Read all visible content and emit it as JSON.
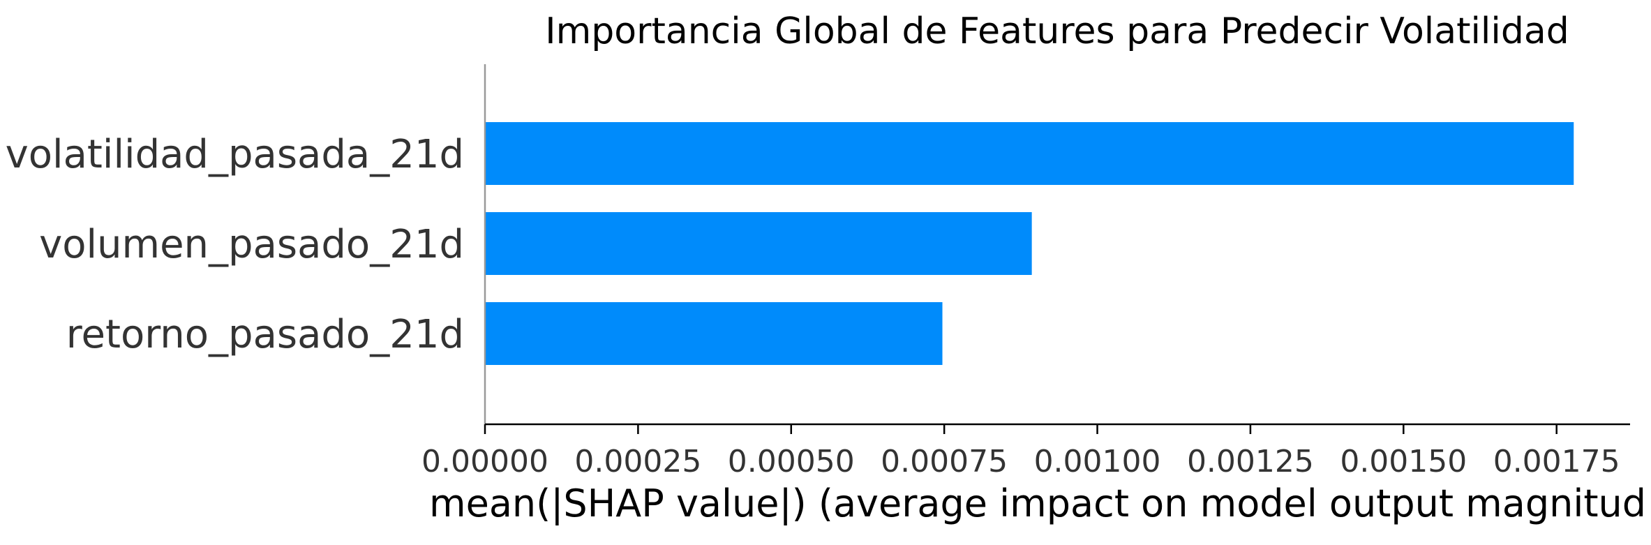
{
  "chart_data": {
    "type": "bar",
    "orientation": "horizontal",
    "title": "Importancia Global de Features para Predecir Volatilidad",
    "xlabel": "mean(|SHAP value|) (average impact on model output magnitud",
    "ylabel": "",
    "categories": [
      "volatilidad_pasada_21d",
      "volumen_pasado_21d",
      "retorno_pasado_21d"
    ],
    "values": [
      0.001778,
      0.000893,
      0.000747
    ],
    "xlim": [
      0,
      0.00187
    ],
    "xticks": [
      0,
      0.00025,
      0.0005,
      0.00075,
      0.001,
      0.00125,
      0.0015,
      0.00175
    ],
    "xtick_labels": [
      "0.00000",
      "0.00025",
      "0.00050",
      "0.00075",
      "0.00100",
      "0.00125",
      "0.00150",
      "0.00175"
    ],
    "grid": false,
    "legend": "none",
    "colors": {
      "bar": "#008bfb",
      "axis": "#000000",
      "zero_line": "#999999",
      "label": "#333333"
    }
  }
}
